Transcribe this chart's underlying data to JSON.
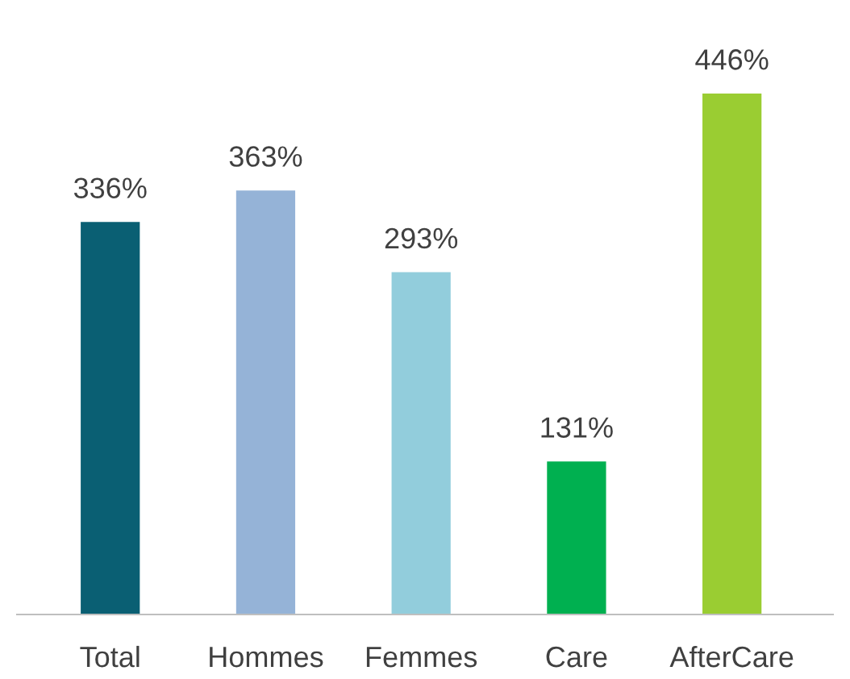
{
  "chart_data": {
    "type": "bar",
    "categories": [
      "Total",
      "Hommes",
      "Femmes",
      "Care",
      "AfterCare"
    ],
    "values": [
      336,
      363,
      293,
      131,
      446
    ],
    "colors": [
      "#0a5f73",
      "#95b3d7",
      "#92cddc",
      "#00b050",
      "#9acd32"
    ],
    "value_labels": [
      "336%",
      "363%",
      "293%",
      "131%",
      "446%"
    ],
    "grid": false,
    "legend": false
  }
}
